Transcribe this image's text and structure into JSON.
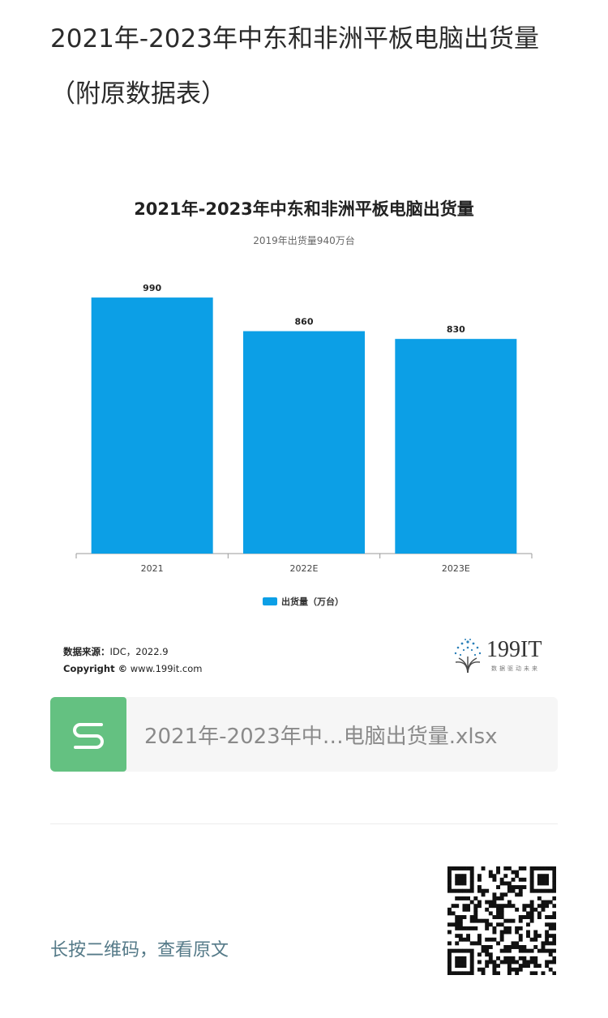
{
  "article": {
    "title": "2021年-2023年中东和非洲平板电脑出货量（附原数据表）"
  },
  "chart_data": {
    "type": "bar",
    "title": "2021年-2023年中东和非洲平板电脑出货量",
    "subtitle": "2019年出货量940万台",
    "categories": [
      "2021",
      "2022E",
      "2023E"
    ],
    "series": [
      {
        "name": "出货量（万台）",
        "values": [
          990,
          860,
          830
        ],
        "color": "#0c9fe6"
      }
    ],
    "ylim": [
      0,
      1100
    ],
    "grid": false,
    "legend_position": "bottom"
  },
  "source": {
    "label": "数据来源：",
    "value": "IDC，2022.9",
    "copyright_label": "Copyright ©",
    "copyright_value": "www.199it.com"
  },
  "brand": {
    "name": "199IT",
    "slogan": "数据驱动未来"
  },
  "attachment": {
    "file_name": "2021年-2023年中…电脑出货量.xlsx",
    "icon": "spreadsheet-icon",
    "icon_color": "#64c181"
  },
  "footer": {
    "qr_hint": "长按二维码，查看原文",
    "qr_icon": "qr-code-icon"
  }
}
